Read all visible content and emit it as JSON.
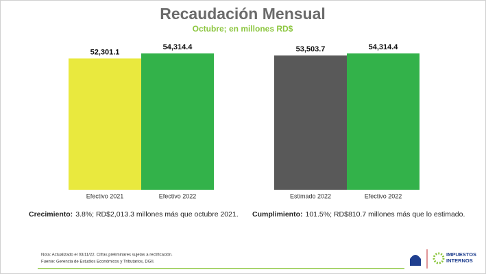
{
  "header": {
    "title": "Recaudación Mensual",
    "subtitle": "Octubre; en millones RD$"
  },
  "chart_data": [
    {
      "type": "bar",
      "categories": [
        "Efectivo 2021",
        "Efectivo 2022"
      ],
      "values": [
        52301.1,
        54314.4
      ],
      "value_labels": [
        "52,301.1",
        "54,314.4"
      ],
      "colors": [
        "#e9e93e",
        "#33b24a"
      ],
      "annotation": {
        "label": "Crecimiento:",
        "text": "3.8%; RD$2,013.3 millones más que octubre 2021."
      }
    },
    {
      "type": "bar",
      "categories": [
        "Estimado 2022",
        "Efectivo 2022"
      ],
      "values": [
        53503.7,
        54314.4
      ],
      "value_labels": [
        "53,503.7",
        "54,314.4"
      ],
      "colors": [
        "#595959",
        "#33b24a"
      ],
      "annotation": {
        "label": "Cumplimiento:",
        "text": "101.5%; RD$810.7 millones más que lo estimado."
      }
    }
  ],
  "notes": [
    "Nota: Actualizado el 03/11/22. Cifras preliminares sujetas a rectificación.",
    "Fuente: Gerencia de Estudios Económicos y Tributarios, DGII."
  ],
  "logo": {
    "line1": "IMPUESTOS",
    "line2": "INTERNOS"
  }
}
